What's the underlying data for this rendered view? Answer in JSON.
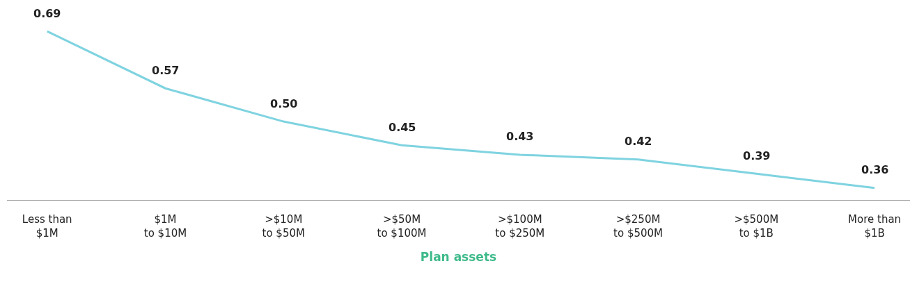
{
  "chart_data": {
    "type": "line",
    "xlabel": "Plan assets",
    "categories": [
      "Less than\n$1M",
      "$1M\nto $10M",
      ">$10M\nto $50M",
      ">$50M\nto $100M",
      ">$100M\nto $250M",
      ">$250M\nto $500M",
      ">$500M\nto $1B",
      "More than\n$1B"
    ],
    "values": [
      0.69,
      0.57,
      0.5,
      0.45,
      0.43,
      0.42,
      0.39,
      0.36
    ],
    "value_labels": [
      "0.69",
      "0.57",
      "0.50",
      "0.45",
      "0.43",
      "0.42",
      "0.39",
      "0.36"
    ],
    "color": "#7fd3e0",
    "legend": false,
    "marker": "none",
    "line_style": "solid"
  }
}
